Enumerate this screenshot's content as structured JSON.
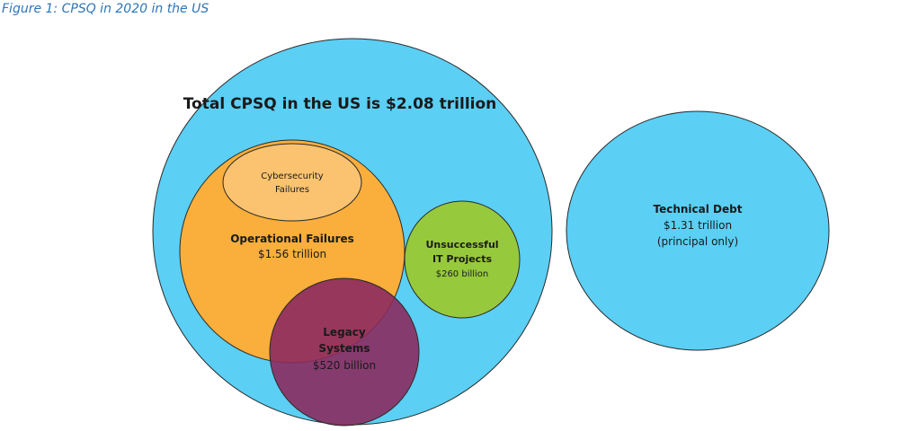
{
  "caption": {
    "prefix": "Figure 1: ",
    "text": "CPSQ in 2020 in the US"
  },
  "colors": {
    "total": "#5bcff4",
    "operational": "#faae3b",
    "cybersecurity": "#fbc370",
    "unsuccessful": "#97c93d",
    "legacy": "#8b2a5f",
    "technical": "#5bcff4",
    "outline": "#2a2a2a"
  },
  "diagram": {
    "total": {
      "title": "Total CPSQ in the US is $2.08 trillion"
    },
    "cybersecurity": {
      "line1": "Cybersecurity",
      "line2": "Failures"
    },
    "operational": {
      "name": "Operational Failures",
      "value": "$1.56 trillion"
    },
    "unsuccessful": {
      "line1": "Unsuccessful",
      "line2": "IT Projects",
      "value": "$260 billion"
    },
    "legacy": {
      "line1": "Legacy",
      "line2": "Systems",
      "value": "$520 billion"
    },
    "technical": {
      "name": "Technical Debt",
      "value": "$1.31 trillion",
      "note": "(principal only)"
    }
  }
}
